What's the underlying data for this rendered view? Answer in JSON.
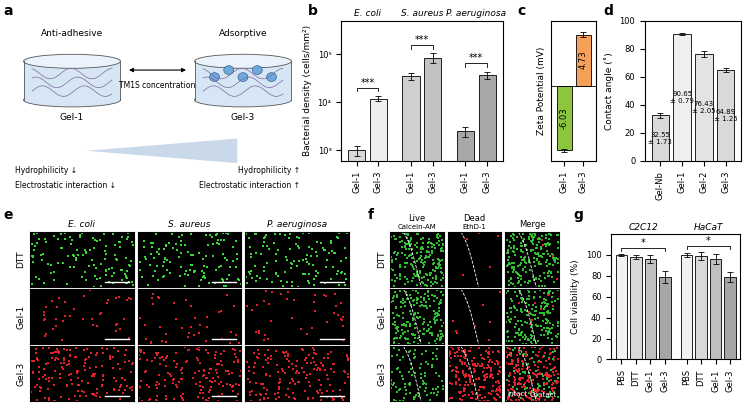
{
  "chart_data": [
    {
      "panel": "b",
      "type": "bar",
      "ylabel": "Bacterial density (cells/mm²)",
      "log": "y",
      "groups": [
        "E. coli",
        "S. aureus",
        "P. aeruginosa"
      ],
      "categories": [
        "Gel-1",
        "Gel-3",
        "Gel-1",
        "Gel-3",
        "Gel-1",
        "Gel-3"
      ],
      "values": [
        1000,
        12000,
        35000,
        85000,
        2500,
        37000
      ],
      "errors": [
        250,
        1500,
        6000,
        20000,
        600,
        7000
      ],
      "colors": [
        "#d9d9d9",
        "#eeeeee",
        "#cfcfcf",
        "#c2c2c2",
        "#a8a8a8",
        "#a8a8a8"
      ],
      "significance": [
        "***",
        "***",
        "***"
      ],
      "ylim": [
        600,
        500000
      ],
      "yticks": [
        {
          "value": 1000,
          "label": "10³"
        },
        {
          "value": 10000,
          "label": "10⁴"
        },
        {
          "value": 100000,
          "label": "10⁵"
        }
      ]
    },
    {
      "panel": "c",
      "type": "bar",
      "ylabel": "Zeta Potential (mV)",
      "categories": [
        "Gel-1",
        "Gel-3"
      ],
      "values": [
        -6.03,
        4.73
      ],
      "errors": [
        0.12,
        0.25
      ],
      "colors": [
        "#8cc63f",
        "#f7a05a"
      ],
      "data_labels": true,
      "ylim": [
        -7,
        6
      ],
      "yticks": [],
      "tick_labels": "x"
    },
    {
      "panel": "d",
      "type": "bar",
      "ylabel": "Contact angle (˚)",
      "categories": [
        "Gel-Nb",
        "Gel-1",
        "Gel-2",
        "Gel-3"
      ],
      "values": [
        32.55,
        90.65,
        76.43,
        64.89
      ],
      "errors": [
        1.73,
        0.79,
        2.05,
        1.25
      ],
      "value_labels": [
        "32.55\n± 1.73",
        "90.65\n± 0.79",
        "76.43\n± 2.05",
        "64.89\n± 1.25"
      ],
      "data_labels": true,
      "colors": [
        "#d9d9d9",
        "#efefef",
        "#e3e3e3",
        "#d9d9d9"
      ],
      "ylim": [
        0,
        100
      ],
      "yticks": [
        0,
        20,
        40,
        60,
        80,
        100
      ]
    },
    {
      "panel": "g",
      "type": "bar",
      "ylabel": "Cell viability (%)",
      "groups": [
        "C2C12",
        "HaCaT"
      ],
      "categories": [
        "PBS",
        "DTT",
        "Gel-1",
        "Gel-3",
        "PBS",
        "DTT",
        "Gel-1",
        "Gel-3"
      ],
      "values": [
        100,
        98,
        96,
        79,
        100,
        99,
        96,
        79
      ],
      "errors": [
        1,
        2,
        4,
        6,
        2,
        4,
        5,
        5
      ],
      "colors": [
        "#f2f2f2",
        "#d9d9d9",
        "#bfbfbf",
        "#a6a6a6",
        "#f2f2f2",
        "#d9d9d9",
        "#bfbfbf",
        "#a6a6a6"
      ],
      "significance": [
        "*",
        "*"
      ],
      "ylim": [
        0,
        120
      ],
      "yticks": [
        0,
        20,
        40,
        60,
        80,
        100
      ]
    }
  ],
  "panels": {
    "a": {
      "panel": "a",
      "left": {
        "title": "Anti-adhesive",
        "label": "Gel-1",
        "notes": [
          "Hydrophilicity ↓",
          "Electrostatic interaction ↓"
        ]
      },
      "right": {
        "title": "Adsorptive",
        "label": "Gel-3",
        "notes": [
          "Hydrophilicity ↑",
          "Electrostatic interaction ↑"
        ]
      },
      "arrow_label": "TM1S concentration"
    },
    "e": {
      "panel": "e",
      "columns": [
        "E. coli",
        "S. aureus",
        "P. aeruginosa"
      ],
      "rows": [
        {
          "label": "DTT",
          "color": "#39d639"
        },
        {
          "label": "Gel-1",
          "color": "#e0202a"
        },
        {
          "label": "Gel-3",
          "color": "#e0202a"
        }
      ]
    },
    "f": {
      "panel": "f",
      "columns": [
        {
          "title": "Live",
          "stain": "Calcein-AM"
        },
        {
          "title": "Dead",
          "stain": "EthD-1"
        },
        {
          "title": "Merge"
        }
      ],
      "rows": [
        "DTT",
        "Gel-1",
        "Gel-3"
      ],
      "regions": [
        "Intact",
        "Contact"
      ]
    }
  }
}
